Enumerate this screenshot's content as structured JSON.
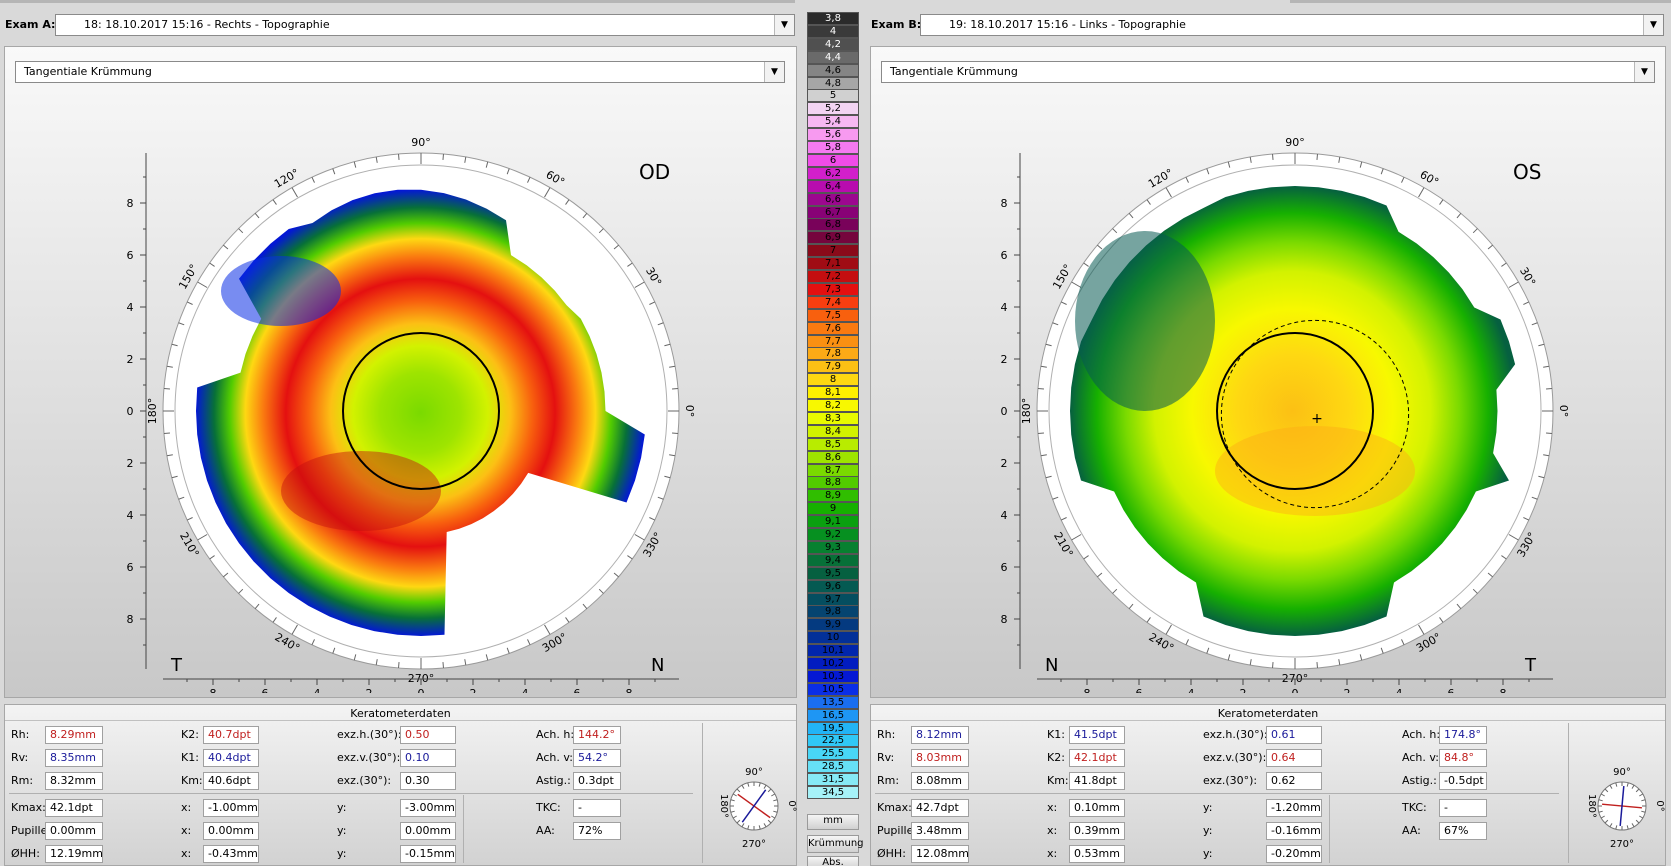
{
  "exam_a": {
    "label": "Exam A:",
    "selection": "18: 18.10.2017 15:16 - Rechts - Topographie",
    "map_type": "Tangentiale Krümmung",
    "eye": "OD",
    "left_corner": "T",
    "right_corner": "N",
    "kerato": {
      "title": "Keratometerdaten",
      "rh_label": "Rh:",
      "rh": "8.29mm",
      "rv_label": "Rv:",
      "rv": "8.35mm",
      "rm_label": "Rm:",
      "rm": "8.32mm",
      "k1_label": "K2:",
      "k1": "40.7dpt",
      "k2_label": "K1:",
      "k2": "40.4dpt",
      "km_label": "Km:",
      "km": "40.6dpt",
      "exzh_label": "exz.h.(30°):",
      "exzh": "0.50",
      "exzv_label": "exz.v.(30°):",
      "exzv": "0.10",
      "exz_label": "exz.(30°):",
      "exz": "0.30",
      "achh_label": "Ach. h:",
      "achh": "144.2°",
      "achv_label": "Ach. v:",
      "achv": "54.2°",
      "astig_label": "Astig.:",
      "astig": "0.3dpt",
      "kmax_label": "Kmax:",
      "kmax": "42.1dpt",
      "pupille_label": "Pupille:",
      "pupille": "0.00mm",
      "ohh_label": "ØHH:",
      "ohh": "12.19mm",
      "x1_label": "x:",
      "x1": "-1.00mm",
      "x2_label": "x:",
      "x2": "0.00mm",
      "x3_label": "x:",
      "x3": "-0.43mm",
      "y1_label": "y:",
      "y1": "-3.00mm",
      "y2_label": "y:",
      "y2": "0.00mm",
      "y3_label": "y:",
      "y3": "-0.15mm",
      "tkc_label": "TKC:",
      "tkc": "-",
      "aa_label": "AA:",
      "aa": "72%"
    },
    "axis_rose": {
      "top": "90°",
      "left": "180°",
      "right": "0°",
      "bottom": "270°"
    }
  },
  "exam_b": {
    "label": "Exam B:",
    "selection": "19: 18.10.2017 15:16 - Links - Topographie",
    "map_type": "Tangentiale Krümmung",
    "eye": "OS",
    "left_corner": "N",
    "right_corner": "T",
    "kerato": {
      "title": "Keratometerdaten",
      "rh_label": "Rh:",
      "rh": "8.12mm",
      "rv_label": "Rv:",
      "rv": "8.03mm",
      "rm_label": "Rm:",
      "rm": "8.08mm",
      "k1_label": "K1:",
      "k1": "41.5dpt",
      "k2_label": "K2:",
      "k2": "42.1dpt",
      "km_label": "Km:",
      "km": "41.8dpt",
      "exzh_label": "exz.h.(30°):",
      "exzh": "0.61",
      "exzv_label": "exz.v.(30°):",
      "exzv": "0.64",
      "exz_label": "exz.(30°):",
      "exz": "0.62",
      "achh_label": "Ach. h:",
      "achh": "174.8°",
      "achv_label": "Ach. v:",
      "achv": "84.8°",
      "astig_label": "Astig.:",
      "astig": "-0.5dpt",
      "kmax_label": "Kmax:",
      "kmax": "42.7dpt",
      "pupille_label": "Pupille:",
      "pupille": "3.48mm",
      "ohh_label": "ØHH:",
      "ohh": "12.08mm",
      "x1_label": "x:",
      "x1": "0.10mm",
      "x2_label": "x:",
      "x2": "0.39mm",
      "x3_label": "x:",
      "x3": "0.53mm",
      "y1_label": "y:",
      "y1": "-1.20mm",
      "y2_label": "y:",
      "y2": "-0.16mm",
      "y3_label": "y:",
      "y3": "-0.20mm",
      "tkc_label": "TKC:",
      "tkc": "-",
      "aa_label": "AA:",
      "aa": "67%"
    },
    "axis_rose": {
      "top": "90°",
      "left": "180°",
      "right": "0°",
      "bottom": "270°"
    }
  },
  "map_labels": {
    "angles": [
      "90°",
      "60°",
      "30°",
      "0°",
      "330°",
      "300°",
      "270°",
      "240°",
      "210°",
      "180°",
      "150°",
      "120°"
    ],
    "y_ticks": [
      "8",
      "6",
      "4",
      "2",
      "0",
      "2",
      "4",
      "6",
      "8"
    ],
    "x_ticks": [
      "8",
      "6",
      "4",
      "2",
      "0",
      "2",
      "4",
      "6",
      "8"
    ]
  },
  "color_scale": {
    "entries": [
      {
        "v": "3,8",
        "c": "#2b2b2b",
        "t": "#fff"
      },
      {
        "v": "4",
        "c": "#3a3a3a",
        "t": "#fff"
      },
      {
        "v": "4,2",
        "c": "#505050",
        "t": "#fff"
      },
      {
        "v": "4,4",
        "c": "#6a6a6a",
        "t": "#fff"
      },
      {
        "v": "4,6",
        "c": "#858585",
        "t": "#000"
      },
      {
        "v": "4,8",
        "c": "#a6a6a6",
        "t": "#000"
      },
      {
        "v": "5",
        "c": "#d0d0d0",
        "t": "#000"
      },
      {
        "v": "5,2",
        "c": "#f3d4f3",
        "t": "#000"
      },
      {
        "v": "5,4",
        "c": "#f6b8f2",
        "t": "#000"
      },
      {
        "v": "5,6",
        "c": "#f79af0",
        "t": "#000"
      },
      {
        "v": "5,8",
        "c": "#f57af0",
        "t": "#000"
      },
      {
        "v": "6",
        "c": "#f04ce8",
        "t": "#000"
      },
      {
        "v": "6,2",
        "c": "#d21fcb",
        "t": "#000"
      },
      {
        "v": "6,4",
        "c": "#b80cae",
        "t": "#000"
      },
      {
        "v": "6,6",
        "c": "#9c078f",
        "t": "#000"
      },
      {
        "v": "6,7",
        "c": "#880276",
        "t": "#000"
      },
      {
        "v": "6,8",
        "c": "#79025a",
        "t": "#000"
      },
      {
        "v": "6,9",
        "c": "#75053d",
        "t": "#000"
      },
      {
        "v": "7",
        "c": "#8a0a1a",
        "t": "#000"
      },
      {
        "v": "7,1",
        "c": "#a00c14",
        "t": "#000"
      },
      {
        "v": "7,2",
        "c": "#c40e10",
        "t": "#000"
      },
      {
        "v": "7,3",
        "c": "#e41010",
        "t": "#000"
      },
      {
        "v": "7,4",
        "c": "#f83e10",
        "t": "#000"
      },
      {
        "v": "7,5",
        "c": "#f8600e",
        "t": "#000"
      },
      {
        "v": "7,6",
        "c": "#fa7a10",
        "t": "#000"
      },
      {
        "v": "7,7",
        "c": "#fa9012",
        "t": "#000"
      },
      {
        "v": "7,8",
        "c": "#fcaa16",
        "t": "#000"
      },
      {
        "v": "7,9",
        "c": "#fcc014",
        "t": "#000"
      },
      {
        "v": "8",
        "c": "#fed812",
        "t": "#000"
      },
      {
        "v": "8,1",
        "c": "#fff000",
        "t": "#000"
      },
      {
        "v": "8,2",
        "c": "#f8f800",
        "t": "#000"
      },
      {
        "v": "8,3",
        "c": "#e8fa00",
        "t": "#000"
      },
      {
        "v": "8,4",
        "c": "#d2f200",
        "t": "#000"
      },
      {
        "v": "8,5",
        "c": "#b8ec00",
        "t": "#000"
      },
      {
        "v": "8,6",
        "c": "#9ee400",
        "t": "#000"
      },
      {
        "v": "8,7",
        "c": "#7ada00",
        "t": "#000"
      },
      {
        "v": "8,8",
        "c": "#52cc00",
        "t": "#000"
      },
      {
        "v": "8,9",
        "c": "#30be00",
        "t": "#000"
      },
      {
        "v": "9",
        "c": "#16b000",
        "t": "#000"
      },
      {
        "v": "9,1",
        "c": "#0aa010",
        "t": "#000"
      },
      {
        "v": "9,2",
        "c": "#069020",
        "t": "#000"
      },
      {
        "v": "9,3",
        "c": "#078030",
        "t": "#000"
      },
      {
        "v": "9,4",
        "c": "#077038",
        "t": "#000"
      },
      {
        "v": "9,5",
        "c": "#066040",
        "t": "#000"
      },
      {
        "v": "9,6",
        "c": "#055a52",
        "t": "#000"
      },
      {
        "v": "9,7",
        "c": "#054e60",
        "t": "#000"
      },
      {
        "v": "9,8",
        "c": "#054470",
        "t": "#000"
      },
      {
        "v": "9,9",
        "c": "#043a80",
        "t": "#000"
      },
      {
        "v": "10",
        "c": "#033098",
        "t": "#000"
      },
      {
        "v": "10,1",
        "c": "#0226ac",
        "t": "#000"
      },
      {
        "v": "10,2",
        "c": "#021cc0",
        "t": "#000"
      },
      {
        "v": "10,3",
        "c": "#0418d4",
        "t": "#000"
      },
      {
        "v": "10,5",
        "c": "#0a2ee6",
        "t": "#000"
      },
      {
        "v": "13,5",
        "c": "#1a6ef0",
        "t": "#000"
      },
      {
        "v": "16,5",
        "c": "#1e96f4",
        "t": "#000"
      },
      {
        "v": "19,5",
        "c": "#22b4f6",
        "t": "#000"
      },
      {
        "v": "22,5",
        "c": "#30c8f6",
        "t": "#000"
      },
      {
        "v": "25,5",
        "c": "#48d6f6",
        "t": "#000"
      },
      {
        "v": "28,5",
        "c": "#66e0f6",
        "t": "#000"
      },
      {
        "v": "31,5",
        "c": "#86eaf6",
        "t": "#000"
      },
      {
        "v": "34,5",
        "c": "#a6f2f8",
        "t": "#000"
      }
    ],
    "unit_button": "mm",
    "mode_button": "Krümmung",
    "abs_button": "Abs."
  }
}
